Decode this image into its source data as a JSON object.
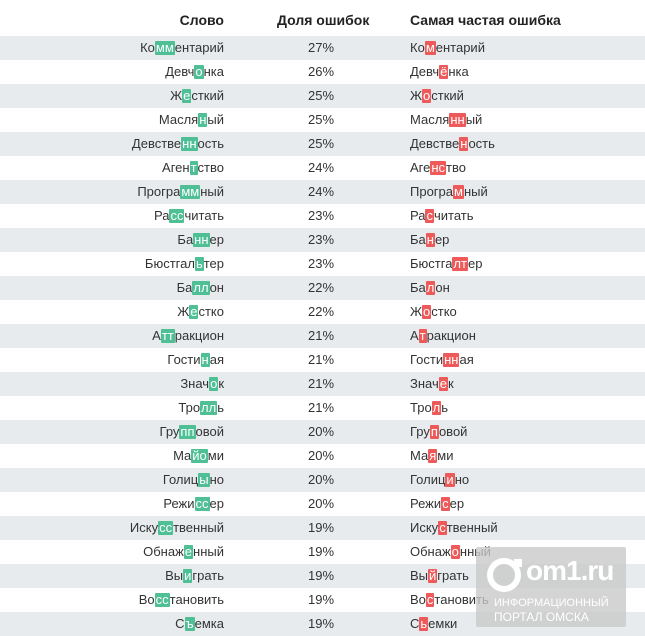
{
  "header": {
    "word": "Слово",
    "share": "Доля ошибок",
    "error": "Самая частая ошибка"
  },
  "colors": {
    "correct_highlight": "#4fbf96",
    "error_highlight": "#ee5a5a",
    "stripe": "#e7ebee"
  },
  "rows": [
    {
      "word": [
        "Ко",
        "мм",
        "ентарий"
      ],
      "share": "27%",
      "error": [
        "Ко",
        "м",
        "ентарий"
      ]
    },
    {
      "word": [
        "Девч",
        "о",
        "нка"
      ],
      "share": "26%",
      "error": [
        "Девч",
        "ё",
        "нка"
      ]
    },
    {
      "word": [
        "Ж",
        "е",
        "сткий"
      ],
      "share": "25%",
      "error": [
        "Ж",
        "о",
        "сткий"
      ]
    },
    {
      "word": [
        "Масля",
        "н",
        "ый"
      ],
      "share": "25%",
      "error": [
        "Масля",
        "нн",
        "ый"
      ]
    },
    {
      "word": [
        "Девстве",
        "нн",
        "ость"
      ],
      "share": "25%",
      "error": [
        "Девстве",
        "н",
        "ость"
      ]
    },
    {
      "word": [
        "Аген",
        "т",
        "ство"
      ],
      "share": "24%",
      "error": [
        "Аге",
        "нс",
        "тво"
      ]
    },
    {
      "word": [
        "Програ",
        "мм",
        "ный"
      ],
      "share": "24%",
      "error": [
        "Програ",
        "м",
        "ный"
      ]
    },
    {
      "word": [
        "Ра",
        "сс",
        "читать"
      ],
      "share": "23%",
      "error": [
        "Ра",
        "с",
        "читать"
      ]
    },
    {
      "word": [
        "Ба",
        "нн",
        "ер"
      ],
      "share": "23%",
      "error": [
        "Ба",
        "н",
        "ер"
      ]
    },
    {
      "word": [
        "Бюстгал",
        "ь",
        "тер"
      ],
      "share": "23%",
      "error": [
        "Бюстга",
        "лт",
        "ер"
      ]
    },
    {
      "word": [
        "Ба",
        "лл",
        "он"
      ],
      "share": "22%",
      "error": [
        "Ба",
        "л",
        "он"
      ]
    },
    {
      "word": [
        "Ж",
        "е",
        "стко"
      ],
      "share": "22%",
      "error": [
        "Ж",
        "о",
        "стко"
      ]
    },
    {
      "word": [
        "А",
        "тт",
        "ракцион"
      ],
      "share": "21%",
      "error": [
        "А",
        "т",
        "ракцион"
      ]
    },
    {
      "word": [
        "Гости",
        "н",
        "ая"
      ],
      "share": "21%",
      "error": [
        "Гости",
        "нн",
        "ая"
      ]
    },
    {
      "word": [
        "Знач",
        "о",
        "к"
      ],
      "share": "21%",
      "error": [
        "Знач",
        "е",
        "к"
      ]
    },
    {
      "word": [
        "Тро",
        "лл",
        "ь"
      ],
      "share": "21%",
      "error": [
        "Тро",
        "л",
        "ь"
      ]
    },
    {
      "word": [
        "Гру",
        "пп",
        "овой"
      ],
      "share": "20%",
      "error": [
        "Гру",
        "п",
        "овой"
      ]
    },
    {
      "word": [
        "Ма",
        "йо",
        "ми"
      ],
      "share": "20%",
      "error": [
        "Ма",
        "я",
        "ми"
      ]
    },
    {
      "word": [
        "Голиц",
        "ы",
        "но"
      ],
      "share": "20%",
      "error": [
        "Голиц",
        "и",
        "но"
      ]
    },
    {
      "word": [
        "Режи",
        "сс",
        "ер"
      ],
      "share": "20%",
      "error": [
        "Режи",
        "с",
        "ер"
      ]
    },
    {
      "word": [
        "Иску",
        "сс",
        "твенный"
      ],
      "share": "19%",
      "error": [
        "Иску",
        "с",
        "твенный"
      ]
    },
    {
      "word": [
        "Обнаж",
        "е",
        "нный"
      ],
      "share": "19%",
      "error": [
        "Обнаж",
        "о",
        "нный"
      ]
    },
    {
      "word": [
        "Вы",
        "и",
        "грать"
      ],
      "share": "19%",
      "error": [
        "Вы",
        "й",
        "грать"
      ]
    },
    {
      "word": [
        "Во",
        "сс",
        "тановить"
      ],
      "share": "19%",
      "error": [
        "Во",
        "с",
        "тановить"
      ]
    },
    {
      "word": [
        "С",
        "ъ",
        "емка"
      ],
      "share": "19%",
      "error": [
        "С",
        "ь",
        "емки"
      ]
    }
  ],
  "logo": {
    "brand": "om1.ru",
    "line1": "ИНФОРМАЦИОННЫЙ",
    "line2": "ПОРТАЛ ОМСКА"
  }
}
